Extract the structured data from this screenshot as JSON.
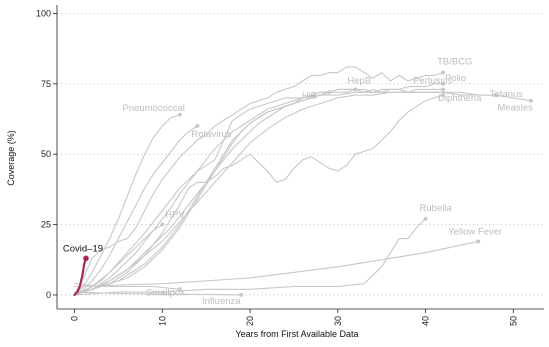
{
  "chart_data": {
    "type": "line",
    "title": "",
    "xlabel": "Years from First Available Data",
    "ylabel": "Coverage (%)",
    "xlim": [
      -2,
      53.5
    ],
    "ylim": [
      -5,
      103
    ],
    "x_ticks": [
      0,
      10,
      20,
      30,
      40,
      50
    ],
    "y_ticks": [
      0,
      25,
      50,
      75,
      100
    ],
    "y_grid": true,
    "x_grid": false,
    "legend": "none",
    "colors": {
      "background_series": "#c8c8c8",
      "background_label": "#bdbdbd",
      "highlight": "#a52a5a",
      "highlight_label": "#111111",
      "grid": "#bbbbbb"
    },
    "series": [
      {
        "name": "TB/BCG",
        "highlight": false,
        "x": [
          0,
          1,
          2,
          3,
          4,
          5,
          6,
          7,
          8,
          9,
          10,
          11,
          12,
          13,
          14,
          15,
          16,
          17,
          18,
          19,
          20,
          21,
          22,
          23,
          24,
          25,
          26,
          27,
          28,
          29,
          30,
          31,
          32,
          33,
          34,
          35,
          36,
          37,
          38,
          39,
          40,
          41,
          42
        ],
        "y": [
          0,
          6,
          13,
          16,
          17,
          19,
          20,
          24,
          30,
          36,
          41,
          45,
          49,
          52,
          55,
          57,
          60,
          62,
          64,
          66,
          68,
          69,
          70,
          72,
          73,
          74,
          76,
          78,
          78,
          79,
          79,
          81,
          81,
          79,
          77,
          79,
          76,
          78,
          76,
          77,
          78,
          78,
          79
        ]
      },
      {
        "name": "Polio",
        "highlight": false,
        "x": [
          0,
          1,
          2,
          3,
          4,
          5,
          6,
          7,
          8,
          9,
          10,
          11,
          12,
          13,
          14,
          15,
          16,
          17,
          18,
          19,
          20,
          21,
          22,
          23,
          24,
          25,
          26,
          27,
          28,
          29,
          30,
          31,
          32,
          33,
          34,
          35,
          36,
          37,
          38,
          39,
          40,
          41,
          42
        ],
        "y": [
          0,
          1,
          2,
          4,
          6,
          9,
          12,
          15,
          19,
          23,
          27,
          31,
          36,
          40,
          44,
          48,
          52,
          55,
          58,
          60,
          62,
          64,
          66,
          67,
          68,
          69,
          70,
          71,
          72,
          72,
          73,
          73,
          73,
          72,
          73,
          72,
          73,
          73,
          74,
          74,
          74,
          75,
          75
        ]
      },
      {
        "name": "Pertussis",
        "highlight": false,
        "x": [
          0,
          1,
          2,
          3,
          4,
          5,
          6,
          7,
          8,
          9,
          10,
          11,
          12,
          13,
          14,
          15,
          16,
          17,
          18,
          19,
          20,
          21,
          22,
          23,
          24,
          25,
          26,
          27,
          28,
          29,
          30,
          31,
          32,
          33,
          34,
          35,
          36,
          37,
          38,
          39,
          40,
          41,
          42
        ],
        "y": [
          0,
          1,
          2,
          3,
          5,
          7,
          9,
          12,
          15,
          18,
          21,
          24,
          28,
          32,
          36,
          40,
          44,
          48,
          52,
          55,
          58,
          61,
          63,
          65,
          67,
          68,
          70,
          71,
          72,
          72,
          73,
          73,
          73,
          73,
          72,
          73,
          73,
          73,
          72,
          73,
          73,
          73,
          73
        ]
      },
      {
        "name": "Tetanus",
        "highlight": false,
        "x": [
          0,
          2,
          4,
          6,
          8,
          10,
          12,
          14,
          16,
          18,
          20,
          22,
          24,
          26,
          28,
          30,
          32,
          34,
          36,
          38,
          40,
          42,
          44,
          46,
          48
        ],
        "y": [
          0,
          2,
          5,
          9,
          14,
          19,
          26,
          33,
          40,
          47,
          54,
          59,
          63,
          66,
          68,
          70,
          71,
          71,
          72,
          72,
          72,
          72,
          72,
          71,
          71
        ]
      },
      {
        "name": "Diphtheria",
        "highlight": false,
        "x": [
          0,
          2,
          4,
          6,
          8,
          10,
          12,
          13,
          14,
          15,
          16,
          17,
          18,
          19,
          20,
          22,
          23,
          24,
          25,
          26,
          27,
          28,
          29,
          30,
          31,
          32,
          33,
          34,
          35,
          36,
          37,
          38,
          39,
          40,
          41,
          42
        ],
        "y": [
          0,
          2,
          4,
          8,
          14,
          22,
          32,
          38,
          40,
          40,
          42,
          45,
          46,
          48,
          50,
          44,
          40,
          41,
          45,
          48,
          49,
          47,
          45,
          44,
          46,
          50,
          51,
          52,
          55,
          58,
          62,
          65,
          67,
          69,
          70,
          71
        ]
      },
      {
        "name": "Measles",
        "highlight": false,
        "x": [
          0,
          2,
          4,
          6,
          8,
          10,
          12,
          14,
          16,
          17,
          18,
          20,
          22,
          24,
          26,
          28,
          30,
          32,
          34,
          36,
          38,
          40,
          42,
          44,
          46,
          48,
          50,
          52
        ],
        "y": [
          0,
          3,
          8,
          15,
          22,
          30,
          38,
          44,
          48,
          55,
          62,
          66,
          68,
          70,
          70,
          71,
          71,
          72,
          72,
          72,
          72,
          72,
          72,
          71,
          71,
          71,
          70,
          69
        ]
      },
      {
        "name": "HepB",
        "highlight": false,
        "x": [
          0,
          1,
          2,
          3,
          4,
          5,
          6,
          7,
          8,
          9,
          10,
          11,
          12,
          13,
          14,
          15,
          16,
          17,
          18,
          19,
          20,
          21,
          22,
          23,
          24,
          25,
          26,
          27,
          28,
          29,
          30,
          31,
          32
        ],
        "y": [
          0,
          1,
          2,
          3,
          4,
          5,
          7,
          9,
          11,
          14,
          17,
          21,
          25,
          30,
          35,
          40,
          45,
          50,
          55,
          58,
          61,
          63,
          65,
          66,
          67,
          68,
          69,
          70,
          71,
          72,
          72,
          72,
          73
        ]
      },
      {
        "name": "HiB",
        "highlight": false,
        "x": [
          0,
          1,
          2,
          3,
          4,
          5,
          6,
          7,
          8,
          9,
          10,
          11,
          12,
          13,
          14,
          15,
          16,
          17,
          18,
          19,
          20,
          21,
          22,
          23,
          24,
          25,
          26,
          27,
          28,
          29
        ],
        "y": [
          0,
          1,
          2,
          3,
          4,
          5,
          6,
          8,
          10,
          13,
          16,
          20,
          24,
          29,
          34,
          39,
          44,
          49,
          54,
          58,
          61,
          63,
          65,
          66,
          67,
          68,
          69,
          70,
          71,
          72
        ]
      },
      {
        "name": "Pneumococcal",
        "highlight": false,
        "x": [
          0,
          1,
          2,
          3,
          4,
          5,
          6,
          7,
          8,
          9,
          10,
          11,
          12
        ],
        "y": [
          0,
          3,
          8,
          14,
          20,
          27,
          35,
          43,
          50,
          56,
          60,
          63,
          64
        ]
      },
      {
        "name": "Rotavirus",
        "highlight": false,
        "x": [
          0,
          1,
          2,
          3,
          4,
          5,
          6,
          7,
          8,
          9,
          10,
          11,
          12,
          13,
          14
        ],
        "y": [
          0,
          2,
          5,
          9,
          14,
          20,
          26,
          32,
          38,
          43,
          47,
          51,
          55,
          58,
          60
        ]
      },
      {
        "name": "HPV",
        "highlight": false,
        "x": [
          0,
          1,
          2,
          3,
          4,
          5,
          6,
          7,
          8,
          9,
          10
        ],
        "y": [
          0,
          1,
          3,
          5,
          8,
          11,
          14,
          17,
          20,
          23,
          25
        ]
      },
      {
        "name": "Rubella",
        "highlight": false,
        "x": [
          0,
          5,
          10,
          15,
          20,
          25,
          30,
          33,
          35,
          36,
          37,
          38,
          39,
          40
        ],
        "y": [
          0,
          1,
          1,
          2,
          2,
          3,
          3,
          4,
          10,
          15,
          20,
          20,
          24,
          27
        ]
      },
      {
        "name": "Yellow Fever",
        "highlight": false,
        "x": [
          0,
          10,
          20,
          30,
          40,
          46
        ],
        "y": [
          3,
          4,
          6,
          10,
          15,
          19
        ]
      },
      {
        "name": "Smallpox",
        "highlight": false,
        "x": [
          0,
          3,
          6,
          9,
          12
        ],
        "y": [
          4,
          3,
          3,
          3,
          2
        ]
      },
      {
        "name": "Influenza",
        "highlight": false,
        "x": [
          0,
          5,
          10,
          15,
          19
        ],
        "y": [
          1,
          0.5,
          0.3,
          0.2,
          0
        ]
      },
      {
        "name": "Covid–19",
        "highlight": true,
        "x": [
          0,
          0.3,
          0.6,
          0.9,
          1.1,
          1.3
        ],
        "y": [
          0,
          1,
          3,
          7,
          11,
          13
        ]
      }
    ]
  }
}
